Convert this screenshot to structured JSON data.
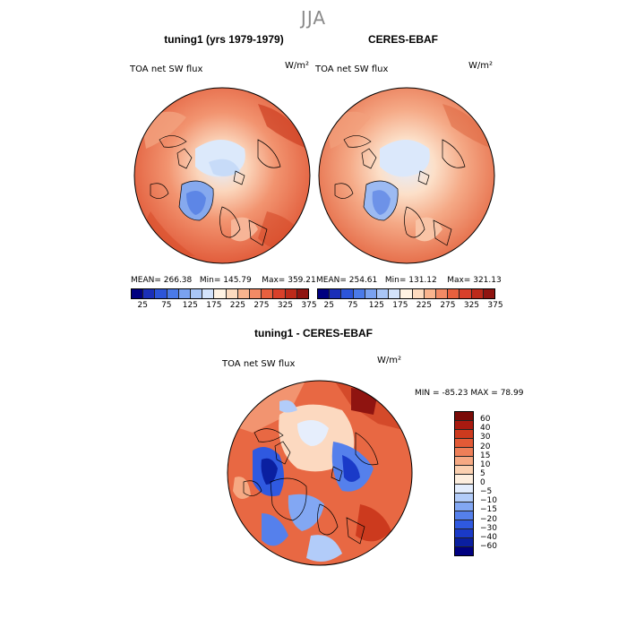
{
  "season": "JJA",
  "panels": {
    "left": {
      "title": "tuning1 (yrs 1979-1979)",
      "var_label": "TOA net SW flux",
      "units": "W/m²",
      "mean_label": "MEAN=",
      "mean": "266.38",
      "min_label": "Min=",
      "min": "145.79",
      "max_label": "Max=",
      "max": "359.21"
    },
    "right": {
      "title": "CERES-EBAF",
      "var_label": "TOA net SW flux",
      "units": "W/m²",
      "mean_label": "MEAN=",
      "mean": "254.61",
      "min_label": "Min=",
      "min": "131.12",
      "max_label": "Max=",
      "max": "321.13"
    },
    "diff": {
      "title": "tuning1 - CERES-EBAF",
      "var_label": "TOA net SW flux",
      "units": "W/m²",
      "min_label": "MIN =",
      "min": "-85.23",
      "max_label": "MAX =",
      "max": "78.99"
    }
  },
  "colorbar_top": {
    "tick_labels": [
      "25",
      "75",
      "125",
      "175",
      "225",
      "275",
      "325",
      "375"
    ],
    "colors": [
      "#000080",
      "#1a2fb8",
      "#2c55d9",
      "#4a7ae8",
      "#7aa2f0",
      "#a9c6f7",
      "#d3e3fb",
      "#fff3e3",
      "#fddbbf",
      "#f9b48e",
      "#f28a65",
      "#e8603e",
      "#d9402a",
      "#bd2a1a",
      "#8f1410"
    ]
  },
  "colorbar_diff": {
    "tick_labels": [
      "60",
      "40",
      "30",
      "20",
      "15",
      "10",
      "5",
      "0",
      "−5",
      "−10",
      "−15",
      "−20",
      "−30",
      "−40",
      "−60"
    ],
    "colors": [
      "#000080",
      "#0a1fa0",
      "#1a3ac8",
      "#2f59e0",
      "#5580ec",
      "#82a7f3",
      "#b2ccf9",
      "#e3edfd",
      "#fdeede",
      "#fbd0b0",
      "#f6a983",
      "#ee7f58",
      "#e25a36",
      "#cc3a1e",
      "#a81a10",
      "#7a0b08"
    ]
  },
  "colors": {
    "land_outline": "#000000",
    "map_border": "#000000"
  }
}
